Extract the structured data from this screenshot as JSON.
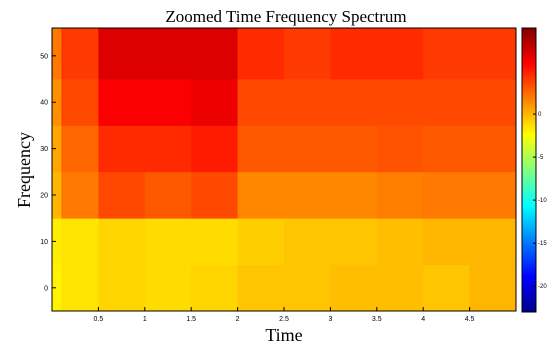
{
  "chart_data": {
    "type": "heatmap",
    "title": "Zoomed Time Frequency Spectrum",
    "xlabel": "Time",
    "ylabel": "Frequency",
    "xlim": [
      0,
      5
    ],
    "ylim": [
      -5,
      56
    ],
    "x_ticks": [
      0.5,
      1,
      1.5,
      2,
      2.5,
      3,
      3.5,
      4,
      4.5
    ],
    "x_tick_labels": [
      "0.5",
      "1",
      "1.5",
      "2",
      "2.5",
      "3",
      "3.5",
      "4",
      "4.5"
    ],
    "y_ticks": [
      0,
      10,
      20,
      30,
      40,
      50
    ],
    "y_tick_labels": [
      "0",
      "10",
      "20",
      "30",
      "40",
      "50"
    ],
    "frequency_bands": [
      [
        -5,
        5
      ],
      [
        5,
        15
      ],
      [
        15,
        25
      ],
      [
        25,
        35
      ],
      [
        35,
        45
      ],
      [
        45,
        56
      ]
    ],
    "colorbar": {
      "range": [
        -23,
        10
      ],
      "ticks": [
        0,
        -5,
        -10,
        -15,
        -20
      ],
      "tick_labels": [
        "0",
        "-5",
        "-10",
        "-15",
        "-20"
      ],
      "colormap": "jet"
    },
    "segments": [
      {
        "t0": 0.0,
        "t1": 0.1,
        "values": [
          -2.0,
          -1.8,
          0.0,
          0.5,
          1.2,
          2.0
        ]
      },
      {
        "t0": 0.1,
        "t1": 0.5,
        "values": [
          -1.5,
          -1.5,
          2.0,
          2.5,
          3.5,
          4.0
        ]
      },
      {
        "t0": 0.5,
        "t1": 1.0,
        "values": [
          -1.0,
          -1.0,
          3.5,
          4.5,
          6.0,
          7.0
        ]
      },
      {
        "t0": 1.0,
        "t1": 1.5,
        "values": [
          -1.2,
          -1.2,
          3.0,
          4.5,
          6.0,
          7.0
        ]
      },
      {
        "t0": 1.5,
        "t1": 2.0,
        "values": [
          -1.0,
          -1.2,
          3.5,
          5.0,
          6.5,
          7.0
        ]
      },
      {
        "t0": 2.0,
        "t1": 2.5,
        "values": [
          -0.5,
          -0.8,
          1.5,
          3.0,
          3.5,
          4.5
        ]
      },
      {
        "t0": 2.5,
        "t1": 3.0,
        "values": [
          -0.5,
          -0.5,
          1.5,
          3.0,
          3.5,
          4.0
        ]
      },
      {
        "t0": 3.0,
        "t1": 3.5,
        "values": [
          -0.3,
          -0.5,
          1.5,
          3.0,
          3.5,
          4.5
        ]
      },
      {
        "t0": 3.5,
        "t1": 4.0,
        "values": [
          -0.3,
          -0.3,
          1.8,
          3.2,
          3.5,
          4.5
        ]
      },
      {
        "t0": 4.0,
        "t1": 4.5,
        "values": [
          -0.5,
          0.0,
          2.0,
          3.0,
          3.5,
          4.0
        ]
      },
      {
        "t0": 4.5,
        "t1": 5.0,
        "values": [
          0.0,
          0.0,
          2.0,
          3.0,
          3.5,
          4.0
        ]
      }
    ]
  },
  "colors": {
    "plot_border": "#000000",
    "background": "#ffffff"
  }
}
